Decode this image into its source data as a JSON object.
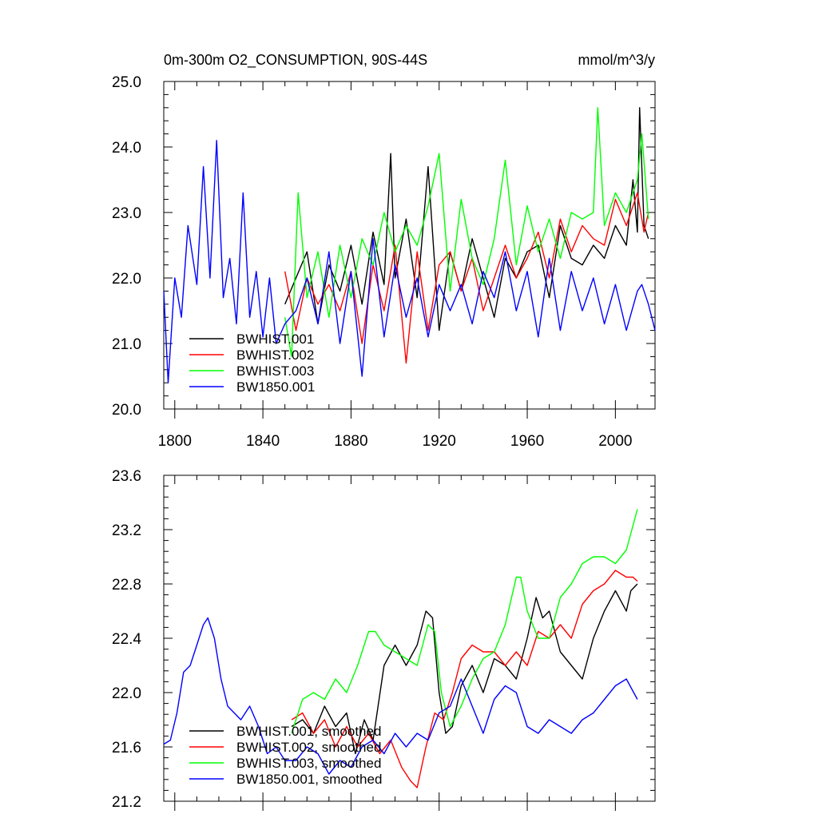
{
  "figure": {
    "title_left": "0m-300m O2_CONSUMPTION, 90S-44S",
    "title_right": "mmol/m^3/y"
  },
  "chart_data": [
    {
      "type": "line",
      "title": "0m-300m O2_CONSUMPTION, 90S-44S",
      "units": "mmol/m^3/y",
      "xlim": [
        1795,
        2018
      ],
      "ylim": [
        20.0,
        25.0
      ],
      "xticks": [
        1800,
        1840,
        1880,
        1920,
        1960,
        2000
      ],
      "xtick_labels": [
        "1800",
        "1840",
        "1880",
        "1920",
        "1960",
        "2000"
      ],
      "yticks": [
        20.0,
        21.0,
        22.0,
        23.0,
        24.0,
        25.0
      ],
      "ytick_labels": [
        "20.0",
        "21.0",
        "22.0",
        "23.0",
        "24.0",
        "25.0"
      ],
      "legend_position": "bottom-left",
      "series": [
        {
          "name": "BWHIST.001",
          "color": "#000000",
          "x": [
            1850,
            1855,
            1860,
            1865,
            1870,
            1875,
            1880,
            1885,
            1890,
            1895,
            1898,
            1900,
            1905,
            1910,
            1915,
            1920,
            1925,
            1930,
            1935,
            1940,
            1945,
            1950,
            1955,
            1960,
            1965,
            1970,
            1975,
            1980,
            1985,
            1990,
            1995,
            2000,
            2005,
            2008,
            2010,
            2011,
            2013,
            2015
          ],
          "values": [
            21.6,
            22.0,
            22.4,
            21.3,
            22.2,
            21.8,
            22.5,
            21.6,
            22.7,
            21.9,
            23.9,
            22.0,
            22.9,
            21.7,
            23.7,
            21.2,
            22.4,
            21.8,
            22.6,
            22.0,
            21.4,
            22.3,
            22.0,
            22.4,
            22.5,
            21.7,
            22.8,
            22.3,
            22.2,
            22.5,
            22.3,
            22.8,
            22.5,
            23.5,
            22.7,
            24.6,
            22.8,
            22.6
          ]
        },
        {
          "name": "BWHIST.002",
          "color": "#ff0000",
          "x": [
            1850,
            1855,
            1860,
            1865,
            1870,
            1875,
            1880,
            1885,
            1890,
            1895,
            1900,
            1905,
            1910,
            1915,
            1920,
            1925,
            1930,
            1935,
            1940,
            1945,
            1950,
            1955,
            1960,
            1965,
            1970,
            1975,
            1980,
            1985,
            1990,
            1995,
            2000,
            2005,
            2010,
            2013,
            2015
          ],
          "values": [
            22.1,
            21.2,
            22.0,
            21.6,
            21.9,
            21.5,
            22.1,
            21.0,
            22.2,
            21.5,
            22.5,
            20.7,
            22.4,
            21.2,
            22.2,
            22.4,
            21.8,
            22.3,
            21.5,
            22.0,
            22.5,
            22.0,
            22.3,
            22.7,
            22.0,
            22.9,
            22.4,
            22.8,
            22.6,
            22.5,
            23.2,
            22.8,
            23.3,
            22.7,
            23.0
          ]
        },
        {
          "name": "BWHIST.003",
          "color": "#00ff00",
          "x": [
            1850,
            1853,
            1856,
            1860,
            1865,
            1870,
            1875,
            1880,
            1885,
            1890,
            1895,
            1900,
            1905,
            1910,
            1915,
            1920,
            1925,
            1930,
            1935,
            1940,
            1945,
            1950,
            1955,
            1960,
            1965,
            1970,
            1975,
            1980,
            1985,
            1990,
            1992,
            1995,
            2000,
            2005,
            2010,
            2012,
            2015
          ],
          "values": [
            21.4,
            20.8,
            23.3,
            21.7,
            22.4,
            21.4,
            22.5,
            21.7,
            22.6,
            22.2,
            23.0,
            22.4,
            22.8,
            22.5,
            23.1,
            23.9,
            21.8,
            23.2,
            22.3,
            21.9,
            22.6,
            23.8,
            22.2,
            23.1,
            22.4,
            22.9,
            22.3,
            23.0,
            22.9,
            23.0,
            24.6,
            22.8,
            23.3,
            23.0,
            23.5,
            24.2,
            22.9
          ]
        },
        {
          "name": "BW1850.001",
          "color": "#0000ff",
          "x": [
            1795,
            1797,
            1800,
            1803,
            1806,
            1810,
            1813,
            1816,
            1819,
            1822,
            1825,
            1828,
            1831,
            1834,
            1837,
            1840,
            1843,
            1846,
            1850,
            1855,
            1860,
            1865,
            1870,
            1875,
            1880,
            1885,
            1890,
            1895,
            1900,
            1905,
            1910,
            1915,
            1920,
            1925,
            1930,
            1935,
            1940,
            1945,
            1950,
            1955,
            1960,
            1965,
            1970,
            1975,
            1980,
            1985,
            1990,
            1995,
            2000,
            2005,
            2010,
            2012,
            2015,
            2018
          ],
          "values": [
            21.8,
            20.4,
            22.0,
            21.4,
            22.8,
            21.9,
            23.7,
            22.0,
            24.1,
            21.7,
            22.3,
            21.3,
            23.3,
            21.4,
            22.1,
            21.1,
            22.0,
            21.0,
            21.3,
            21.5,
            22.0,
            21.3,
            22.4,
            21.0,
            22.1,
            20.5,
            22.6,
            21.1,
            22.2,
            21.4,
            22.0,
            21.1,
            21.9,
            21.5,
            21.9,
            21.3,
            22.1,
            21.7,
            22.4,
            21.5,
            22.1,
            21.1,
            22.3,
            21.2,
            22.1,
            21.5,
            22.0,
            21.3,
            21.9,
            21.2,
            21.8,
            21.9,
            21.6,
            21.2
          ]
        }
      ]
    },
    {
      "type": "line",
      "xlim": [
        1795,
        2018
      ],
      "ylim": [
        21.2,
        23.6
      ],
      "xticks": [
        1800,
        1840,
        1880,
        1920,
        1960,
        2000
      ],
      "yticks": [
        21.2,
        21.6,
        22.0,
        22.4,
        22.8,
        23.2,
        23.6
      ],
      "ytick_labels": [
        "21.2",
        "21.6",
        "22.0",
        "22.4",
        "22.8",
        "23.2",
        "23.6"
      ],
      "legend_position": "bottom-left",
      "series": [
        {
          "name": "BWHIST.001, smoothed",
          "color": "#000000",
          "x": [
            1853,
            1858,
            1863,
            1868,
            1873,
            1878,
            1882,
            1886,
            1890,
            1895,
            1900,
            1905,
            1910,
            1914,
            1917,
            1920,
            1923,
            1926,
            1930,
            1935,
            1940,
            1945,
            1950,
            1955,
            1960,
            1964,
            1967,
            1970,
            1975,
            1980,
            1985,
            1990,
            1995,
            2000,
            2005,
            2007,
            2010
          ],
          "values": [
            21.75,
            21.8,
            21.7,
            21.9,
            21.75,
            21.85,
            21.55,
            21.8,
            21.65,
            22.2,
            22.35,
            22.2,
            22.35,
            22.6,
            22.55,
            22.0,
            21.7,
            21.75,
            22.05,
            22.2,
            22.0,
            22.25,
            22.2,
            22.1,
            22.4,
            22.7,
            22.55,
            22.6,
            22.3,
            22.2,
            22.1,
            22.4,
            22.6,
            22.75,
            22.6,
            22.75,
            22.8
          ]
        },
        {
          "name": "BWHIST.002, smoothed",
          "color": "#ff0000",
          "x": [
            1853,
            1858,
            1863,
            1868,
            1873,
            1878,
            1883,
            1888,
            1893,
            1898,
            1903,
            1907,
            1910,
            1914,
            1918,
            1922,
            1926,
            1930,
            1935,
            1940,
            1945,
            1950,
            1955,
            1960,
            1965,
            1970,
            1975,
            1980,
            1985,
            1990,
            1995,
            2000,
            2005,
            2008,
            2010
          ],
          "values": [
            21.8,
            21.85,
            21.7,
            21.8,
            21.6,
            21.75,
            21.6,
            21.7,
            21.55,
            21.65,
            21.45,
            21.35,
            21.3,
            21.6,
            21.85,
            21.8,
            22.0,
            22.25,
            22.35,
            22.3,
            22.3,
            22.2,
            22.3,
            22.2,
            22.45,
            22.4,
            22.5,
            22.4,
            22.65,
            22.75,
            22.8,
            22.9,
            22.85,
            22.85,
            22.82
          ]
        },
        {
          "name": "BWHIST.003, smoothed",
          "color": "#00ff00",
          "x": [
            1853,
            1858,
            1863,
            1868,
            1873,
            1878,
            1883,
            1888,
            1891,
            1895,
            1900,
            1905,
            1910,
            1915,
            1918,
            1921,
            1925,
            1930,
            1935,
            1940,
            1945,
            1950,
            1955,
            1957,
            1960,
            1965,
            1970,
            1975,
            1980,
            1985,
            1990,
            1995,
            2000,
            2005,
            2010
          ],
          "values": [
            21.7,
            21.95,
            22.0,
            21.95,
            22.1,
            22.0,
            22.2,
            22.45,
            22.45,
            22.35,
            22.3,
            22.25,
            22.2,
            22.5,
            22.45,
            22.0,
            21.75,
            21.9,
            22.1,
            22.25,
            22.3,
            22.5,
            22.85,
            22.85,
            22.6,
            22.4,
            22.4,
            22.7,
            22.8,
            22.95,
            23.0,
            23.0,
            22.95,
            23.05,
            23.35
          ]
        },
        {
          "name": "BW1850.001, smoothed",
          "color": "#0000ff",
          "x": [
            1795,
            1798,
            1801,
            1804,
            1807,
            1810,
            1813,
            1815,
            1818,
            1821,
            1824,
            1827,
            1830,
            1834,
            1838,
            1842,
            1846,
            1850,
            1855,
            1860,
            1865,
            1870,
            1875,
            1880,
            1885,
            1890,
            1895,
            1900,
            1905,
            1910,
            1915,
            1920,
            1925,
            1930,
            1935,
            1940,
            1945,
            1950,
            1955,
            1960,
            1965,
            1970,
            1975,
            1980,
            1985,
            1990,
            1995,
            2000,
            2005,
            2010
          ],
          "values": [
            21.62,
            21.65,
            21.85,
            22.15,
            22.2,
            22.35,
            22.5,
            22.55,
            22.4,
            22.1,
            21.9,
            21.85,
            21.8,
            21.9,
            21.75,
            21.55,
            21.6,
            21.5,
            21.5,
            21.6,
            21.55,
            21.4,
            21.5,
            21.45,
            21.6,
            21.65,
            21.55,
            21.7,
            21.6,
            21.7,
            21.65,
            21.85,
            21.9,
            22.1,
            21.9,
            21.7,
            21.95,
            22.05,
            22.0,
            21.75,
            21.7,
            21.8,
            21.75,
            21.7,
            21.8,
            21.85,
            21.95,
            22.05,
            22.1,
            21.95
          ]
        }
      ]
    }
  ]
}
